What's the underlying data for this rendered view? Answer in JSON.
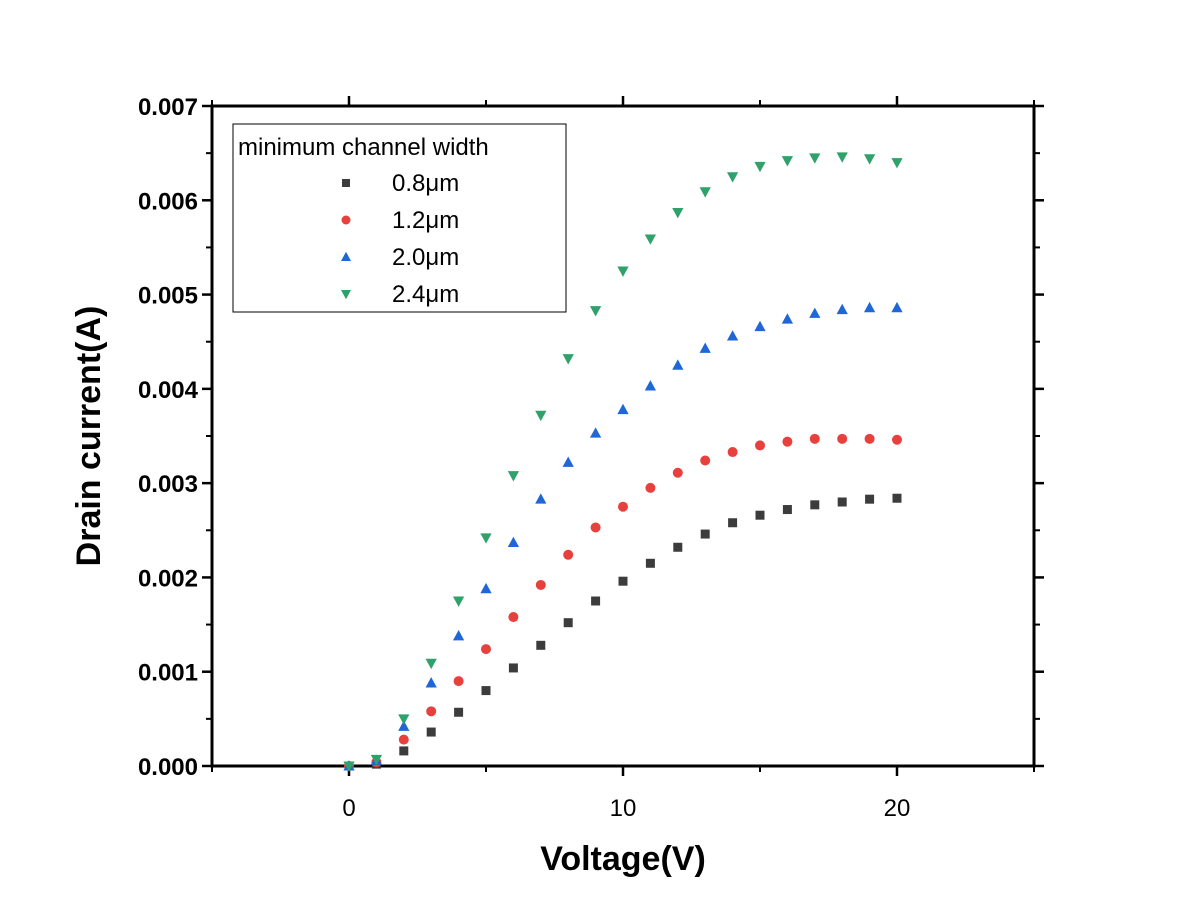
{
  "chart_data": {
    "type": "scatter",
    "title": "",
    "xlabel": "Voltage(V)",
    "ylabel": "Drain current(A)",
    "xlim": [
      -5,
      25
    ],
    "ylim": [
      0,
      0.007
    ],
    "xticks": [
      0,
      10,
      20
    ],
    "yticks": [
      0.0,
      0.001,
      0.002,
      0.003,
      0.004,
      0.005,
      0.006,
      0.007
    ],
    "xtick_labels": [
      "0",
      "10",
      "20"
    ],
    "ytick_labels": [
      "0.000",
      "0.001",
      "0.002",
      "0.003",
      "0.004",
      "0.005",
      "0.006",
      "0.007"
    ],
    "grid": false,
    "legend": {
      "title": "minimum channel width",
      "position": "top-left"
    },
    "series": [
      {
        "name": "0.8μm",
        "marker": "square",
        "color": "#3c3c3c",
        "x": [
          0,
          1,
          2,
          3,
          4,
          5,
          6,
          7,
          8,
          9,
          10,
          11,
          12,
          13,
          14,
          15,
          16,
          17,
          18,
          19,
          20
        ],
        "y": [
          0,
          2e-05,
          0.00016,
          0.00036,
          0.00057,
          0.0008,
          0.00104,
          0.00128,
          0.00152,
          0.00175,
          0.00196,
          0.00215,
          0.00232,
          0.00246,
          0.00258,
          0.00266,
          0.00272,
          0.00277,
          0.0028,
          0.00283,
          0.00284
        ]
      },
      {
        "name": "1.2μm",
        "marker": "circle",
        "color": "#e8403c",
        "x": [
          0,
          1,
          2,
          3,
          4,
          5,
          6,
          7,
          8,
          9,
          10,
          11,
          12,
          13,
          14,
          15,
          16,
          17,
          18,
          19,
          20
        ],
        "y": [
          0,
          4e-05,
          0.00028,
          0.00058,
          0.0009,
          0.00124,
          0.00158,
          0.00192,
          0.00224,
          0.00253,
          0.00275,
          0.00295,
          0.00311,
          0.00324,
          0.00333,
          0.0034,
          0.00344,
          0.00347,
          0.00347,
          0.00347,
          0.00346
        ]
      },
      {
        "name": "2.0μm",
        "marker": "triangle-up",
        "color": "#1f66d6",
        "x": [
          0,
          1,
          2,
          3,
          4,
          5,
          6,
          7,
          8,
          9,
          10,
          11,
          12,
          13,
          14,
          15,
          16,
          17,
          18,
          19,
          20
        ],
        "y": [
          0,
          6e-05,
          0.00042,
          0.00088,
          0.00138,
          0.00188,
          0.00237,
          0.00283,
          0.00322,
          0.00353,
          0.00378,
          0.00403,
          0.00425,
          0.00443,
          0.00456,
          0.00466,
          0.00474,
          0.0048,
          0.00484,
          0.00486,
          0.00486
        ]
      },
      {
        "name": "2.4μm",
        "marker": "triangle-down",
        "color": "#2ea26a",
        "x": [
          0,
          1,
          2,
          3,
          4,
          5,
          6,
          7,
          8,
          9,
          10,
          11,
          12,
          13,
          14,
          15,
          16,
          17,
          18,
          19,
          20
        ],
        "y": [
          0,
          7e-05,
          0.0005,
          0.00109,
          0.00175,
          0.00242,
          0.00308,
          0.00372,
          0.00432,
          0.00483,
          0.00525,
          0.00559,
          0.00587,
          0.00609,
          0.00625,
          0.00636,
          0.00642,
          0.00645,
          0.00646,
          0.00644,
          0.0064
        ]
      }
    ]
  }
}
